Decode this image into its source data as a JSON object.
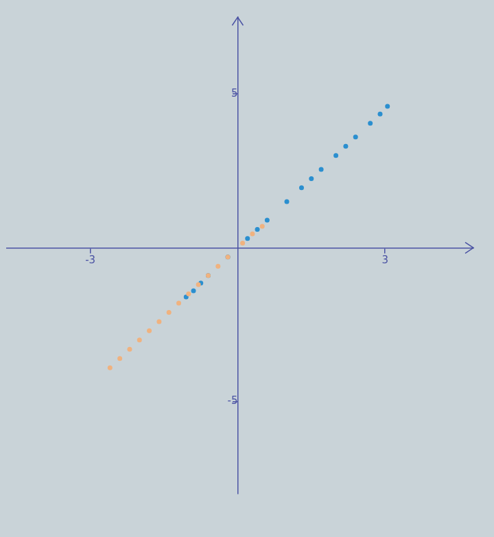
{
  "chart_data": {
    "type": "scatter",
    "xlim": [
      -4.7,
      4.8
    ],
    "ylim": [
      -8,
      7.5
    ],
    "xticks": [
      -3,
      3
    ],
    "yticks": [
      -5,
      5
    ],
    "grid": false,
    "series": [
      {
        "color": "#f0b27f",
        "marker": "circle",
        "x": [
          -2.6,
          -2.4,
          -2.2,
          -2.0,
          -1.8,
          -1.6,
          -1.4,
          -1.2,
          -1.0,
          -0.8,
          -0.6,
          -0.4,
          -0.2,
          0.1,
          0.3,
          0.5
        ],
        "values": [
          -3.9,
          -3.6,
          -3.3,
          -3.0,
          -2.7,
          -2.4,
          -2.1,
          -1.8,
          -1.5,
          -1.2,
          -0.9,
          -0.6,
          -0.3,
          0.15,
          0.45,
          0.7
        ]
      },
      {
        "color": "#2b8fcf",
        "marker": "circle",
        "x": [
          -1.05,
          -0.9,
          -0.75,
          -0.6,
          -0.2,
          0.2,
          0.4,
          0.6,
          1.0,
          1.3,
          1.5,
          1.7,
          2.0,
          2.2,
          2.4,
          2.7,
          2.9,
          3.05
        ],
        "values": [
          -1.6,
          -1.4,
          -1.15,
          -0.9,
          -0.3,
          0.3,
          0.6,
          0.9,
          1.5,
          1.95,
          2.25,
          2.55,
          3.0,
          3.3,
          3.6,
          4.05,
          4.35,
          4.6
        ]
      }
    ]
  }
}
